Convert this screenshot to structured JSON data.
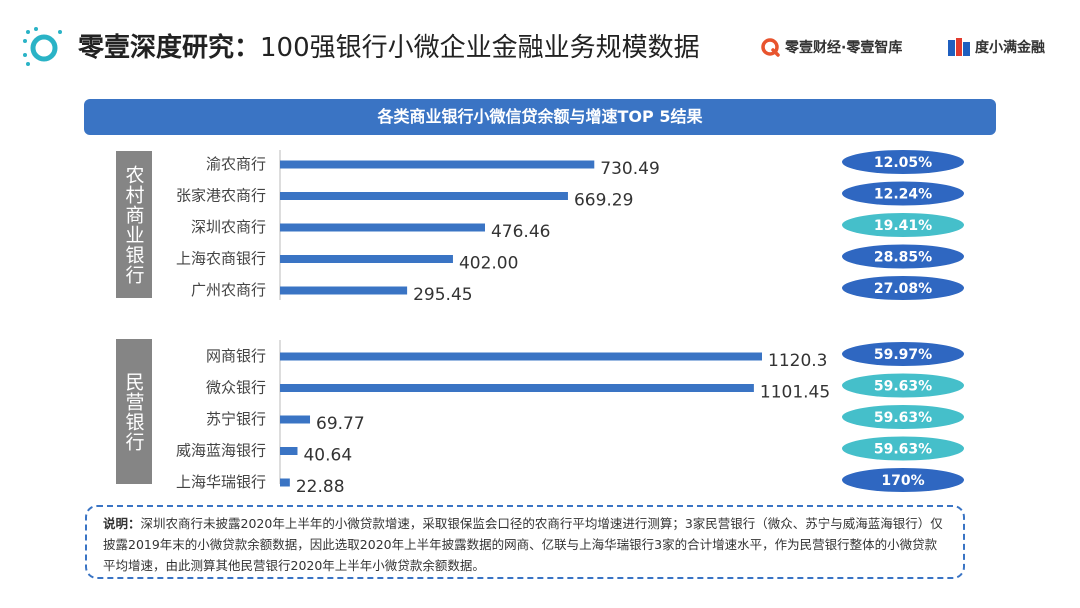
{
  "header": {
    "title_bold": "零壹深度研究：",
    "title_rest": "100强银行小微企业金融业务规模数据",
    "brand1": "零壹财经·零壹智库",
    "brand2": "度小满金融"
  },
  "banner": "各类商业银行小微信贷余额与增速TOP 5结果",
  "groups": {
    "rural": "农村商业银行",
    "private": "民营银行"
  },
  "colors": {
    "bar": "#3a74c4",
    "growth_dark": "#2f67c1",
    "growth_light": "#45bfca"
  },
  "chart_data": {
    "type": "bar",
    "orientation": "horizontal",
    "title": "各类商业银行小微信贷余额与增速TOP 5结果",
    "groups": [
      {
        "name": "农村商业银行",
        "categories": [
          "渝农商行",
          "张家港农商行",
          "深圳农商行",
          "上海农商银行",
          "广州农商行"
        ],
        "values": [
          730.49,
          669.29,
          476.46,
          402.0,
          295.45
        ],
        "value_labels": [
          "730.49",
          "669.29",
          "476.46",
          "402.00",
          "295.45"
        ],
        "growth": [
          "12.05%",
          "12.24%",
          "19.41%",
          "28.85%",
          "27.08%"
        ],
        "growth_color": [
          "dark",
          "dark",
          "light",
          "dark",
          "dark"
        ]
      },
      {
        "name": "民营银行",
        "categories": [
          "网商银行",
          "微众银行",
          "苏宁银行",
          "威海蓝海银行",
          "上海华瑞银行"
        ],
        "values": [
          1120.3,
          1101.45,
          69.77,
          40.64,
          22.88
        ],
        "value_labels": [
          "1120.3",
          "1101.45",
          "69.77",
          "40.64",
          "22.88"
        ],
        "growth": [
          "59.97%",
          "59.63%",
          "59.63%",
          "59.63%",
          "170%"
        ],
        "growth_color": [
          "dark",
          "light",
          "light",
          "light",
          "dark"
        ]
      }
    ]
  },
  "note": {
    "label": "说明：",
    "text": "深圳农商行未披露2020年上半年的小微贷款增速，采取银保监会口径的农商行平均增速进行测算；3家民营银行（微众、苏宁与威海蓝海银行）仅披露2019年末的小微贷款余额数据，因此选取2020年上半年披露数据的网商、亿联与上海华瑞银行3家的合计增速水平，作为民营银行整体的小微贷款平均增速，由此测算其他民营银行2020年上半年小微贷款余额数据。"
  }
}
